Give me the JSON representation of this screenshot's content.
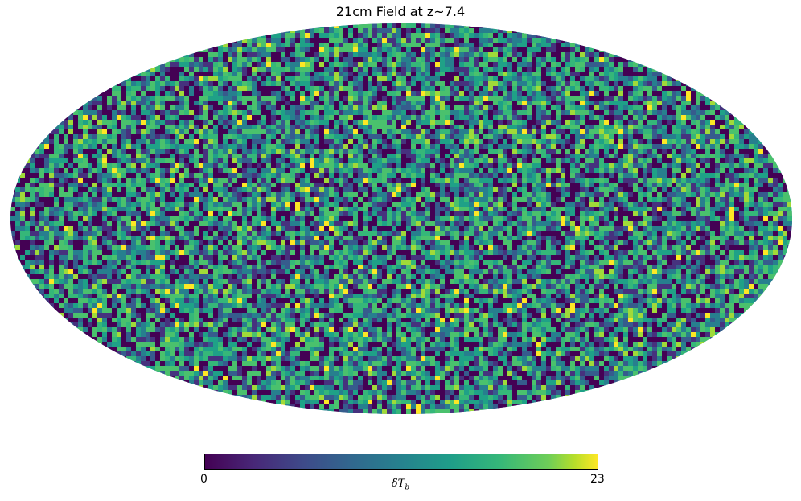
{
  "chart_data": {
    "type": "heatmap",
    "projection": "mollweide",
    "title": "21cm Field at z~7.4",
    "colormap": "viridis",
    "colorbar": {
      "min": "0",
      "max": "23",
      "label_symbol": "δT",
      "label_subscript": "b"
    },
    "value_range": [
      0,
      23
    ],
    "distribution": "random noise field over full sky",
    "grid": false
  }
}
